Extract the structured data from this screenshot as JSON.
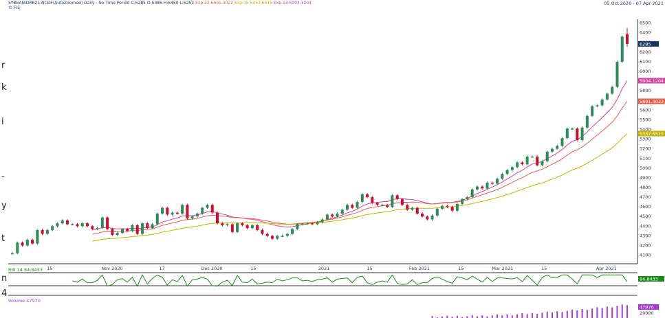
{
  "header": {
    "symbol_text": "SYBEANIDRK21.NCDF(AutoZoomed) Daily -  No Time Period   C:6285 O:6386 H:6450 L:6253",
    "exp22_text": "Exp 22 5691.3022",
    "exp45_text": "Exp 45 5357.6515",
    "exp13_text": "Exp 13 5904.1204",
    "source": "© FIS",
    "date_range": "05 Oct 2020  -  07 Apr 2021"
  },
  "side_fragments": [
    "r",
    "k",
    "i",
    "-",
    "y",
    "t",
    "n",
    "4"
  ],
  "chart_data": [
    {
      "type": "candlestick",
      "title": "SYBEANIDRK21.NCDF(AutoZoomed) Daily",
      "ohlc_last": {
        "open": 6386,
        "high": 6450,
        "low": 6253,
        "close": 6285
      },
      "x_tick_labels": [
        "15",
        "Nov 2020",
        "17",
        "Dec 2020",
        "15",
        "2021",
        "15",
        "Feb 2021",
        "15",
        "Mar 2021",
        "15",
        "Apr 2021"
      ],
      "y_tick_labels": [
        4100,
        4200,
        4300,
        4400,
        4500,
        4600,
        4700,
        4800,
        4900,
        5000,
        5100,
        5200,
        5300,
        5400,
        5500,
        5600,
        5700,
        5800,
        5900,
        6000,
        6100,
        6200,
        6300,
        6400,
        6500
      ],
      "ylim": [
        4040,
        6540
      ],
      "closes": [
        4120,
        4230,
        4200,
        4260,
        4220,
        4360,
        4320,
        4360,
        4400,
        4430,
        4460,
        4420,
        4420,
        4400,
        4430,
        4400,
        4370,
        4380,
        4490,
        4370,
        4310,
        4330,
        4370,
        4350,
        4410,
        4320,
        4430,
        4380,
        4420,
        4530,
        4590,
        4520,
        4540,
        4530,
        4620,
        4480,
        4500,
        4530,
        4590,
        4620,
        4540,
        4430,
        4410,
        4420,
        4340,
        4430,
        4410,
        4380,
        4410,
        4360,
        4320,
        4300,
        4270,
        4300,
        4300,
        4320,
        4370,
        4420,
        4420,
        4430,
        4420,
        4440,
        4470,
        4520,
        4500,
        4530,
        4570,
        4620,
        4590,
        4650,
        4730,
        4700,
        4640,
        4620,
        4620,
        4600,
        4720,
        4680,
        4620,
        4570,
        4590,
        4530,
        4500,
        4470,
        4510,
        4580,
        4610,
        4600,
        4560,
        4630,
        4680,
        4700,
        4780,
        4810,
        4790,
        4850,
        4840,
        4890,
        4940,
        4980,
        5010,
        5060,
        5040,
        5120,
        5120,
        5030,
        5070,
        5170,
        5200,
        5230,
        5310,
        5410,
        5410,
        5290,
        5420,
        5540,
        5640,
        5650,
        5710,
        5770,
        5840,
        6100,
        6360,
        6285
      ],
      "series": [
        {
          "name": "Exp 13",
          "color": "#d6429c",
          "last": 5904.1204
        },
        {
          "name": "Exp 22",
          "color": "#e8604c",
          "last": 5691.3022
        },
        {
          "name": "Exp 45",
          "color": "#c2b400",
          "last": 5357.6515
        }
      ],
      "last_price_badge": "6285"
    },
    {
      "type": "line",
      "title": "RSI 14",
      "title_text": "RSI 14  84.8433",
      "value": 84.8433,
      "tick_label": "60",
      "color": "#1a8a1a",
      "badge": "84.8433"
    },
    {
      "type": "bar",
      "title": "Volume",
      "title_text": "Volume  47970",
      "value": 47970,
      "tick_label": "20000",
      "color": "#a43bd6",
      "badge": "47970"
    }
  ],
  "colors": {
    "bull": "#2e8b57",
    "bear": "#c8102e",
    "price_badge": "#16365c",
    "axis": "#333333",
    "text": "#1f3a63"
  }
}
